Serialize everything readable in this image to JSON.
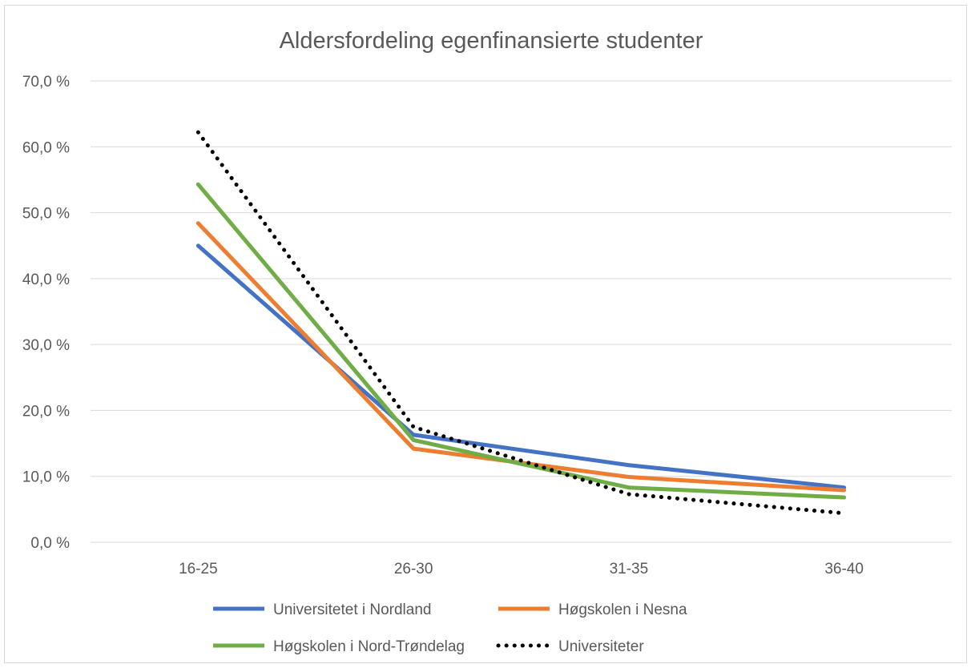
{
  "chart_data": {
    "type": "line",
    "title": "Aldersfordeling egenfinansierte studenter",
    "xlabel": "",
    "ylabel": "",
    "categories": [
      "16-25",
      "26-30",
      "31-35",
      "36-40"
    ],
    "ylim": [
      0,
      70
    ],
    "yticks": [
      0,
      10,
      20,
      30,
      40,
      50,
      60,
      70
    ],
    "ytick_labels": [
      "0,0 %",
      "10,0 %",
      "20,0 %",
      "30,0 %",
      "40,0 %",
      "50,0 %",
      "60,0 %",
      "70,0 %"
    ],
    "grid": true,
    "legend_position": "bottom",
    "series": [
      {
        "name": "Universitetet i Nordland",
        "values": [
          45.0,
          16.3,
          11.7,
          8.3
        ],
        "color": "#4472c4",
        "style": "solid"
      },
      {
        "name": "Høgskolen  i Nesna",
        "values": [
          48.4,
          14.2,
          9.9,
          7.9
        ],
        "color": "#ed7d31",
        "style": "solid"
      },
      {
        "name": "Høgskolen i Nord-Trøndelag",
        "values": [
          54.3,
          15.5,
          8.3,
          6.8
        ],
        "color": "#70ad47",
        "style": "solid"
      },
      {
        "name": "Universiteter",
        "values": [
          62.2,
          17.5,
          7.3,
          4.4
        ],
        "color": "#000000",
        "style": "dotted"
      }
    ]
  }
}
